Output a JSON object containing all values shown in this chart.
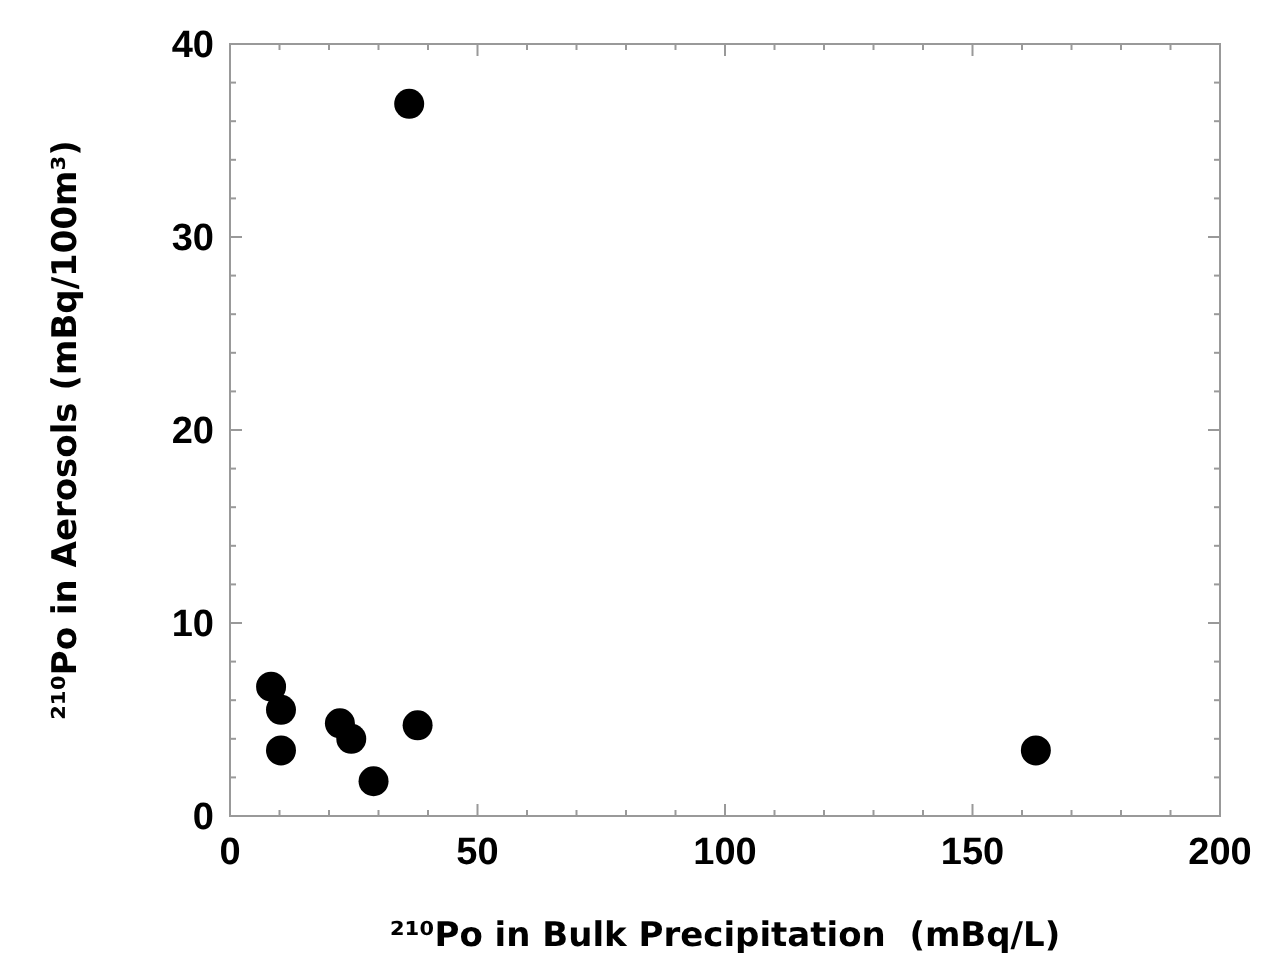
{
  "chart_data": {
    "type": "scatter",
    "xlabel": "²¹⁰Po in Bulk Precipitation  (mBq/L)",
    "ylabel": "²¹⁰Po in Aerosols (mBq/100m³)",
    "x": [
      36.2,
      8.3,
      10.3,
      10.3,
      22.2,
      24.5,
      29.0,
      37.9,
      162.8
    ],
    "values": [
      36.9,
      6.7,
      5.5,
      3.4,
      4.8,
      4.0,
      1.8,
      4.7,
      3.4
    ],
    "color": "#000000",
    "marker": "circle",
    "grid": false,
    "xlim": [
      0,
      200
    ],
    "ylim": [
      0,
      40
    ],
    "xticks": [
      0,
      {
        "value": 10,
        "label": null
      },
      {
        "value": 20,
        "label": null
      },
      {
        "value": 30,
        "label": null
      },
      {
        "value": 40,
        "label": null
      },
      50,
      {
        "value": 60,
        "label": null
      },
      {
        "value": 70,
        "label": null
      },
      {
        "value": 80,
        "label": null
      },
      {
        "value": 90,
        "label": null
      },
      100,
      {
        "value": 110,
        "label": null
      },
      {
        "value": 120,
        "label": null
      },
      {
        "value": 130,
        "label": null
      },
      {
        "value": 140,
        "label": null
      },
      150,
      {
        "value": 160,
        "label": null
      },
      {
        "value": 170,
        "label": null
      },
      {
        "value": 180,
        "label": null
      },
      {
        "value": 190,
        "label": null
      },
      200
    ],
    "yticks": [
      0,
      {
        "value": 2,
        "label": null
      },
      {
        "value": 4,
        "label": null
      },
      {
        "value": 6,
        "label": null
      },
      {
        "value": 8,
        "label": null
      },
      10,
      {
        "value": 12,
        "label": null
      },
      {
        "value": 14,
        "label": null
      },
      {
        "value": 16,
        "label": null
      },
      {
        "value": 18,
        "label": null
      },
      20,
      {
        "value": 22,
        "label": null
      },
      {
        "value": 24,
        "label": null
      },
      {
        "value": 26,
        "label": null
      },
      {
        "value": 28,
        "label": null
      },
      30,
      {
        "value": 32,
        "label": null
      },
      {
        "value": 34,
        "label": null
      },
      {
        "value": 36,
        "label": null
      },
      {
        "value": 38,
        "label": null
      },
      40
    ]
  }
}
